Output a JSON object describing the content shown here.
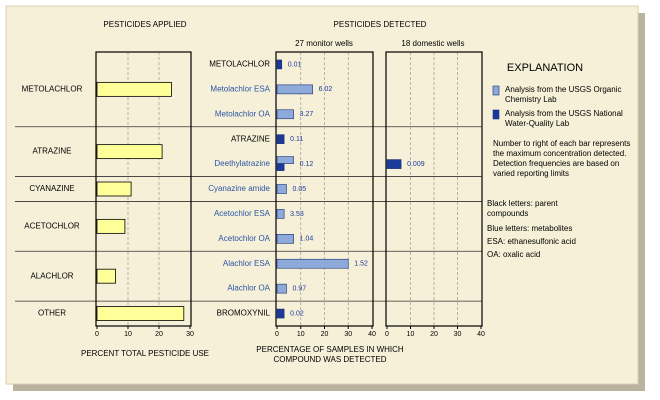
{
  "chart_data": [
    {
      "type": "bar",
      "orientation": "horizontal",
      "title": "PESTICIDES APPLIED",
      "x_label": "PERCENT TOTAL PESTICIDE USE",
      "categories": [
        "METOLACHLOR",
        "ATRAZINE",
        "CYANAZINE",
        "ACETOCHLOR",
        "ALACHLOR",
        "OTHER"
      ],
      "values": [
        24,
        21,
        11,
        9,
        6,
        28
      ],
      "color": "#ffff99",
      "xlim": [
        0,
        30
      ],
      "xticks": [
        0,
        10,
        20,
        30
      ],
      "grid": true
    },
    {
      "type": "bar",
      "orientation": "horizontal",
      "title": "PESTICIDES DETECTED",
      "subtitle": "27 monitor wells",
      "x_label": "PERCENTAGE OF SAMPLES IN WHICH COMPOUND WAS DETECTED",
      "categories": [
        "METOLACHLOR",
        "Metolachlor ESA",
        "Metolachlor OA",
        "ATRAZINE",
        "Deethylatrazine",
        "Cyanazine amide",
        "Acetochlor ESA",
        "Acetochlor OA",
        "Alachlor ESA",
        "Alachlor OA",
        "BROMOXYNIL"
      ],
      "category_colors": [
        "#000000",
        "#2a55a5",
        "#2a55a5",
        "#000000",
        "#2a55a5",
        "#2a55a5",
        "#2a55a5",
        "#2a55a5",
        "#2a55a5",
        "#2a55a5",
        "#000000"
      ],
      "series": [
        {
          "name": "Analysis from the USGS Organic Chemistry Lab",
          "color": "#8eaadb",
          "values": [
            null,
            15,
            7,
            null,
            7,
            4,
            3,
            7,
            30,
            4,
            null
          ]
        },
        {
          "name": "Analysis from the USGS National Water-Quality Lab",
          "color": "#1a3a9c",
          "values": [
            2,
            null,
            null,
            3,
            3,
            null,
            null,
            null,
            null,
            null,
            3
          ]
        }
      ],
      "annotations": [
        "0.01",
        "6.02",
        "3.27",
        "0.11",
        "0.12",
        "0.05",
        "3.53",
        "1.04",
        "1.52",
        "0.97",
        "0.02"
      ],
      "xlim": [
        0,
        40
      ],
      "xticks": [
        0,
        10,
        20,
        30,
        40
      ],
      "grid": true
    },
    {
      "type": "bar",
      "orientation": "horizontal",
      "subtitle": "18 domestic wells",
      "series": [
        {
          "color": "#1a3a9c",
          "values": [
            null,
            null,
            null,
            null,
            6,
            null,
            null,
            null,
            null,
            null,
            null
          ]
        }
      ],
      "annotations": [
        null,
        null,
        null,
        null,
        "0.009",
        null,
        null,
        null,
        null,
        null,
        null
      ],
      "xlim": [
        0,
        40
      ],
      "xticks": [
        0,
        10,
        20,
        30,
        40
      ],
      "grid": true
    }
  ],
  "explanation": {
    "title": "EXPLANATION",
    "notes": [
      "Number to right of each bar represents the maximum concentration detected. Detection frequencies are based on varied reporting limits",
      "Black letters: parent compounds",
      "Blue letters: metabolites",
      "ESA: ethanesulfonic acid",
      "OA: oxalic acid"
    ]
  }
}
